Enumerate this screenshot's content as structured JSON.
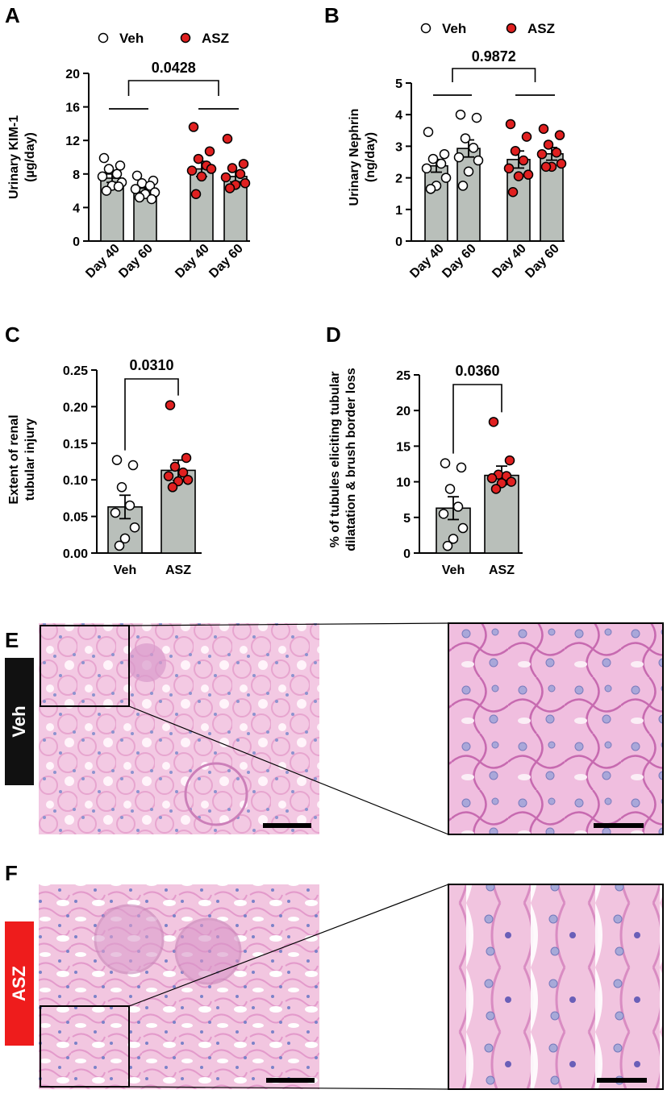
{
  "chart_data": [
    {
      "panel": "A",
      "type": "bar",
      "ylabel": "Urinary KIM-1 (µg/day)",
      "ylabel_lines": [
        "Urinary KIM-1",
        "(µg/day)"
      ],
      "ylim": [
        0,
        20
      ],
      "yticks": [
        0,
        4,
        8,
        12,
        16,
        20
      ],
      "legend": [
        "Veh",
        "ASZ"
      ],
      "categories": [
        "Day 40",
        "Day 60",
        "Day 40",
        "Day 60"
      ],
      "groups": [
        "Veh",
        "Veh",
        "ASZ",
        "ASZ"
      ],
      "values": [
        7.5,
        6.3,
        8.6,
        7.7
      ],
      "errors": [
        0.5,
        0.45,
        0.9,
        0.65
      ],
      "points": [
        [
          9.9,
          9.0,
          8.6,
          8.0,
          7.7,
          7.0,
          6.6,
          6.0,
          6.5
        ],
        [
          7.8,
          7.2,
          6.9,
          6.6,
          6.2,
          5.8,
          5.6,
          5.2,
          5.0
        ],
        [
          13.6,
          10.7,
          9.8,
          9.0,
          8.4,
          8.6,
          7.7,
          5.6
        ],
        [
          12.2,
          9.2,
          8.7,
          8.0,
          7.6,
          6.9,
          6.7,
          6.3
        ]
      ],
      "annotation": "0.0428"
    },
    {
      "panel": "B",
      "type": "bar",
      "ylabel": "Urinary Nephrin (ng/day)",
      "ylabel_lines": [
        "Urinary Nephrin",
        "(ng/day)"
      ],
      "ylim": [
        0,
        5
      ],
      "yticks": [
        0,
        1,
        2,
        3,
        4,
        5
      ],
      "legend": [
        "Veh",
        "ASZ"
      ],
      "categories": [
        "Day 40",
        "Day 60",
        "Day 40",
        "Day 60"
      ],
      "groups": [
        "Veh",
        "Veh",
        "ASZ",
        "ASZ"
      ],
      "values": [
        2.38,
        2.93,
        2.58,
        2.76
      ],
      "errors": [
        0.2,
        0.27,
        0.27,
        0.2
      ],
      "points": [
        [
          3.45,
          2.75,
          2.6,
          2.45,
          2.3,
          2.0,
          1.75,
          1.65
        ],
        [
          4.0,
          3.9,
          3.25,
          2.95,
          2.65,
          2.55,
          2.2,
          1.75
        ],
        [
          3.7,
          3.3,
          2.85,
          2.55,
          2.3,
          2.1,
          2.05,
          1.55
        ],
        [
          3.55,
          3.35,
          3.05,
          2.8,
          2.75,
          2.45,
          2.35,
          2.35
        ]
      ],
      "annotation": "0.9872"
    },
    {
      "panel": "C",
      "type": "bar",
      "ylabel": "Extent of renal tubular injury",
      "ylabel_lines": [
        "Extent of  renal",
        "tubular injury"
      ],
      "ylim": [
        0,
        0.25
      ],
      "yticks": [
        "0.00",
        "0.05",
        "0.10",
        "0.15",
        "0.20",
        "0.25"
      ],
      "categories": [
        "Veh",
        "ASZ"
      ],
      "groups": [
        "Veh",
        "ASZ"
      ],
      "values": [
        0.063,
        0.113
      ],
      "errors": [
        0.016,
        0.014
      ],
      "points": [
        [
          0.127,
          0.12,
          0.09,
          0.065,
          0.055,
          0.035,
          0.02,
          0.01
        ],
        [
          0.202,
          0.13,
          0.118,
          0.11,
          0.105,
          0.1,
          0.098,
          0.09
        ]
      ],
      "annotation": "0.0310"
    },
    {
      "panel": "D",
      "type": "bar",
      "ylabel": "% of tubules eliciting tubular dilatation & brush border loss",
      "ylabel_lines": [
        "% of tubules eliciting tubular",
        "dilatation & brush border loss"
      ],
      "ylim": [
        0,
        25
      ],
      "yticks": [
        0,
        5,
        10,
        15,
        20,
        25
      ],
      "categories": [
        "Veh",
        "ASZ"
      ],
      "groups": [
        "Veh",
        "ASZ"
      ],
      "values": [
        6.3,
        10.9
      ],
      "errors": [
        1.6,
        1.3
      ],
      "points": [
        [
          12.6,
          12.0,
          9.0,
          6.5,
          5.5,
          3.5,
          2.0,
          1.0
        ],
        [
          18.4,
          13.0,
          11.0,
          10.8,
          10.5,
          10.0,
          9.8,
          9.0
        ]
      ],
      "annotation": "0.0360"
    }
  ],
  "panel_letters": [
    "A",
    "B",
    "C",
    "D",
    "E",
    "F"
  ],
  "micrographs": [
    {
      "panel": "E",
      "group_label": "Veh",
      "label_bg": "#111111"
    },
    {
      "panel": "F",
      "group_label": "ASZ",
      "label_bg": "#ee1c1c"
    }
  ],
  "colors": {
    "bar_fill": "#b9bfba",
    "veh_point": "#ffffff",
    "asz_point": "#e02020",
    "tissue": "#efc0de",
    "nuclei": "#8a8fcf"
  }
}
